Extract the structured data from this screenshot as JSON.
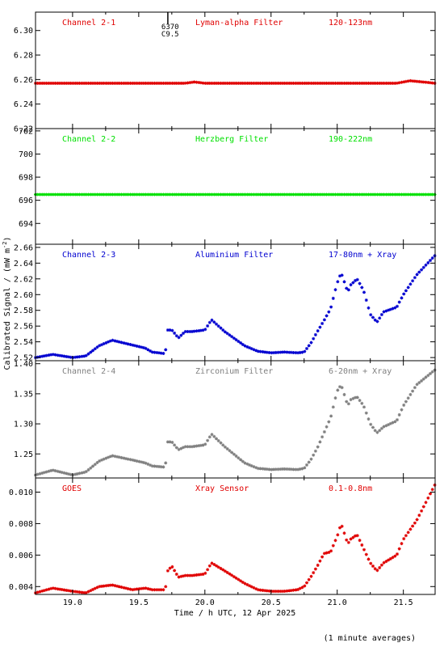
{
  "ylabel": "Calibrated Signal / (mW m",
  "ylabel_sup": "-2",
  "ylabel_end": ")",
  "xlabel": "Time / h UTC, 12 Apr 2025",
  "footnote": "(1 minute averages)",
  "x_ticks": [
    "19.0",
    "19.5",
    "20.0",
    "20.5",
    "21.0",
    "21.5"
  ],
  "marker": {
    "x": 19.72,
    "lines": [
      "6370",
      "C9.5"
    ]
  },
  "colors": {
    "ch21": "#e00000",
    "ch22": "#00e000",
    "ch23": "#0000d0",
    "ch24": "#808080",
    "goes": "#e00000",
    "axis": "#000000"
  },
  "chart_data": [
    {
      "type": "scatter",
      "channel": "Channel 2-1",
      "filter": "Lyman-alpha Filter",
      "band": "120-123nm",
      "xlim": [
        18.72,
        21.74
      ],
      "ylim": [
        6.22,
        6.315
      ],
      "y_ticks": [
        "6.22",
        "6.24",
        "6.26",
        "6.28",
        "6.30"
      ],
      "x": [
        18.72,
        19.0,
        19.5,
        19.85,
        19.92,
        20.0,
        20.5,
        21.0,
        21.45,
        21.55,
        21.65,
        21.74
      ],
      "y": [
        6.257,
        6.257,
        6.257,
        6.257,
        6.258,
        6.257,
        6.257,
        6.257,
        6.257,
        6.259,
        6.258,
        6.257
      ]
    },
    {
      "type": "scatter",
      "channel": "Channel 2-2",
      "filter": "Herzberg Filter",
      "band": "190-222nm",
      "xlim": [
        18.72,
        21.74
      ],
      "ylim": [
        692.2,
        702.2
      ],
      "y_ticks": [
        "694",
        "696",
        "698",
        "700",
        "702"
      ],
      "x": [
        18.72,
        19.5,
        20.0,
        20.5,
        21.0,
        21.5,
        21.74
      ],
      "y": [
        696.5,
        696.5,
        696.5,
        696.5,
        696.5,
        696.5,
        696.5
      ]
    },
    {
      "type": "scatter",
      "channel": "Channel 2-3",
      "filter": "Aluminium Filter",
      "band": "17-80nm + Xray",
      "xlim": [
        18.72,
        21.74
      ],
      "ylim": [
        2.516,
        2.664
      ],
      "y_ticks": [
        "2.52",
        "2.54",
        "2.56",
        "2.58",
        "2.60",
        "2.62",
        "2.64",
        "2.66"
      ],
      "x": [
        18.72,
        18.85,
        19.0,
        19.1,
        19.2,
        19.3,
        19.45,
        19.55,
        19.6,
        19.7,
        19.72,
        19.75,
        19.8,
        19.85,
        19.9,
        20.0,
        20.05,
        20.15,
        20.3,
        20.4,
        20.5,
        20.6,
        20.7,
        20.75,
        20.8,
        20.85,
        20.9,
        20.95,
        21.0,
        21.03,
        21.08,
        21.1,
        21.15,
        21.2,
        21.25,
        21.3,
        21.35,
        21.45,
        21.5,
        21.6,
        21.74
      ],
      "y": [
        2.52,
        2.524,
        2.52,
        2.522,
        2.535,
        2.542,
        2.536,
        2.532,
        2.527,
        2.525,
        2.555,
        2.555,
        2.545,
        2.553,
        2.553,
        2.555,
        2.568,
        2.553,
        2.535,
        2.528,
        2.526,
        2.527,
        2.526,
        2.527,
        2.538,
        2.553,
        2.567,
        2.582,
        2.615,
        2.628,
        2.603,
        2.612,
        2.62,
        2.605,
        2.575,
        2.565,
        2.578,
        2.584,
        2.6,
        2.625,
        2.65
      ]
    },
    {
      "type": "scatter",
      "channel": "Channel 2-4",
      "filter": "Zirconium Filter",
      "band": "6-20nm + Xray",
      "xlim": [
        18.72,
        21.74
      ],
      "ylim": [
        1.21,
        1.405
      ],
      "y_ticks": [
        "1.25",
        "1.30",
        "1.35",
        "1.40"
      ],
      "x": [
        18.72,
        18.85,
        19.0,
        19.1,
        19.2,
        19.3,
        19.45,
        19.55,
        19.6,
        19.7,
        19.72,
        19.75,
        19.8,
        19.85,
        19.9,
        20.0,
        20.05,
        20.15,
        20.3,
        20.4,
        20.5,
        20.6,
        20.7,
        20.75,
        20.8,
        20.85,
        20.9,
        20.95,
        21.0,
        21.03,
        21.08,
        21.1,
        21.15,
        21.2,
        21.25,
        21.3,
        21.35,
        21.45,
        21.5,
        21.6,
        21.74
      ],
      "y": [
        1.215,
        1.223,
        1.215,
        1.22,
        1.238,
        1.247,
        1.24,
        1.235,
        1.23,
        1.228,
        1.27,
        1.27,
        1.257,
        1.262,
        1.262,
        1.265,
        1.283,
        1.262,
        1.235,
        1.226,
        1.224,
        1.225,
        1.224,
        1.226,
        1.24,
        1.26,
        1.285,
        1.31,
        1.355,
        1.365,
        1.33,
        1.34,
        1.345,
        1.33,
        1.3,
        1.285,
        1.295,
        1.305,
        1.33,
        1.365,
        1.39
      ]
    },
    {
      "type": "scatter",
      "channel": "GOES",
      "filter": "Xray Sensor",
      "band": "0.1-0.8nm",
      "xlim": [
        18.72,
        21.74
      ],
      "ylim": [
        0.0035,
        0.0109
      ],
      "y_ticks": [
        "0.004",
        "0.006",
        "0.008",
        "0.010"
      ],
      "x": [
        18.72,
        18.85,
        19.0,
        19.1,
        19.2,
        19.3,
        19.45,
        19.55,
        19.6,
        19.7,
        19.72,
        19.75,
        19.8,
        19.85,
        19.9,
        20.0,
        20.05,
        20.15,
        20.3,
        20.4,
        20.5,
        20.6,
        20.7,
        20.75,
        20.8,
        20.85,
        20.9,
        20.95,
        21.0,
        21.03,
        21.08,
        21.1,
        21.15,
        21.2,
        21.25,
        21.3,
        21.35,
        21.45,
        21.5,
        21.6,
        21.74
      ],
      "y": [
        0.0036,
        0.0039,
        0.0037,
        0.0036,
        0.004,
        0.0041,
        0.0038,
        0.0039,
        0.0038,
        0.0038,
        0.005,
        0.0053,
        0.0046,
        0.0047,
        0.0047,
        0.0048,
        0.0055,
        0.005,
        0.0042,
        0.0038,
        0.0037,
        0.0037,
        0.0038,
        0.004,
        0.0046,
        0.0053,
        0.0061,
        0.0062,
        0.0072,
        0.008,
        0.0067,
        0.007,
        0.0073,
        0.0064,
        0.0055,
        0.005,
        0.0055,
        0.006,
        0.007,
        0.0082,
        0.0105
      ]
    }
  ]
}
